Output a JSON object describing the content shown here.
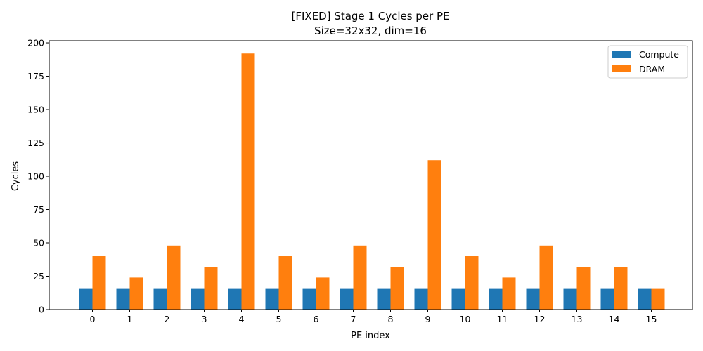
{
  "chart_data": {
    "type": "bar",
    "title": "[FIXED] Stage 1 Cycles per PE",
    "subtitle": "Size=32x32, dim=16",
    "xlabel": "PE index",
    "ylabel": "Cycles",
    "categories": [
      "0",
      "1",
      "2",
      "3",
      "4",
      "5",
      "6",
      "7",
      "8",
      "9",
      "10",
      "11",
      "12",
      "13",
      "14",
      "15"
    ],
    "series": [
      {
        "name": "Compute",
        "color": "#1f77b4",
        "values": [
          16,
          16,
          16,
          16,
          16,
          16,
          16,
          16,
          16,
          16,
          16,
          16,
          16,
          16,
          16,
          16
        ]
      },
      {
        "name": "DRAM",
        "color": "#ff7f0e",
        "values": [
          40,
          24,
          48,
          32,
          192,
          40,
          24,
          48,
          32,
          112,
          40,
          24,
          48,
          32,
          32,
          16
        ]
      }
    ],
    "ylim": [
      0,
      201.6
    ],
    "yticks": [
      "0",
      "25",
      "50",
      "75",
      "100",
      "125",
      "150",
      "175",
      "200"
    ],
    "legend_position": "top-right",
    "grid": false
  }
}
